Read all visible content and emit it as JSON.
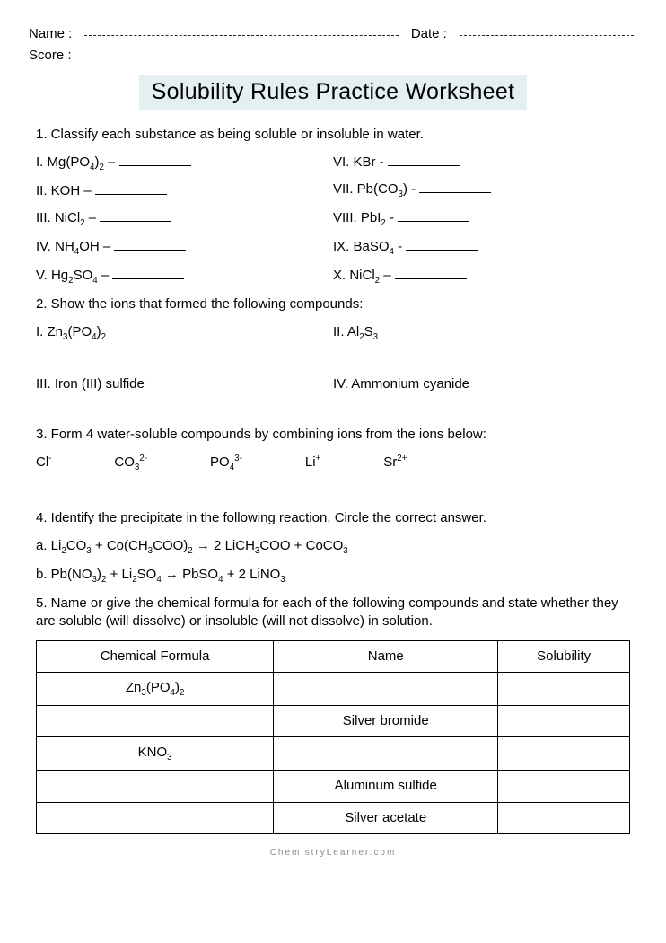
{
  "header": {
    "name_label": "Name :",
    "date_label": "Date :",
    "score_label": "Score :"
  },
  "title": "Solubility Rules Practice Worksheet",
  "q1": {
    "prompt": "1. Classify each substance as being soluble or insoluble in water.",
    "left": [
      "I. Mg(PO₄)₂ – ",
      "II. KOH – ",
      "III. NiCl₂ – ",
      "IV. NH₄OH – ",
      "V. Hg₂SO₄ –  "
    ],
    "right": [
      "VI. KBr -  ",
      "VII. Pb(CO₃) -  ",
      "VIII. PbI₂ -  ",
      "IX. BaSO₄ -  ",
      "X. NiCl₂ –  "
    ]
  },
  "q2": {
    "prompt": "2. Show the ions that formed the following compounds:",
    "i": "I. Zn₃(PO₄)₂",
    "ii": "II. Al₂S₃",
    "iii": "III. Iron (III) sulfide",
    "iv": "IV. Ammonium cyanide"
  },
  "q3": {
    "prompt": "3. Form 4 water-soluble compounds by combining ions from the ions below:",
    "ions": [
      "Cl⁻",
      "CO₃²⁻",
      "PO₄³⁻",
      "Li⁺",
      "Sr²⁺"
    ]
  },
  "q4": {
    "prompt": "4. Identify the precipitate in the following reaction. Circle the correct answer.",
    "a": "a. Li₂CO₃ + Co(CH₃COO)₂ → 2 LiCH₃COO + CoCO₃",
    "b": "b. Pb(NO₃)₂ + Li₂SO₄ → PbSO₄ + 2 LiNO₃"
  },
  "q5": {
    "prompt": "5. Name or give the chemical formula for each of the following compounds and state whether they are soluble (will dissolve) or insoluble (will not dissolve) in solution.",
    "columns": [
      "Chemical Formula",
      "Name",
      "Solubility"
    ],
    "rows": [
      [
        "Zn₃(PO₄)₂",
        "",
        ""
      ],
      [
        "",
        "Silver bromide",
        ""
      ],
      [
        "KNO₃",
        "",
        ""
      ],
      [
        "",
        "Aluminum sulfide",
        ""
      ],
      [
        "",
        "Silver acetate",
        ""
      ]
    ]
  },
  "footer": "ChemistryLearner.com",
  "colors": {
    "title_bg": "#e3eff0",
    "text": "#000000",
    "footer": "#888888"
  }
}
